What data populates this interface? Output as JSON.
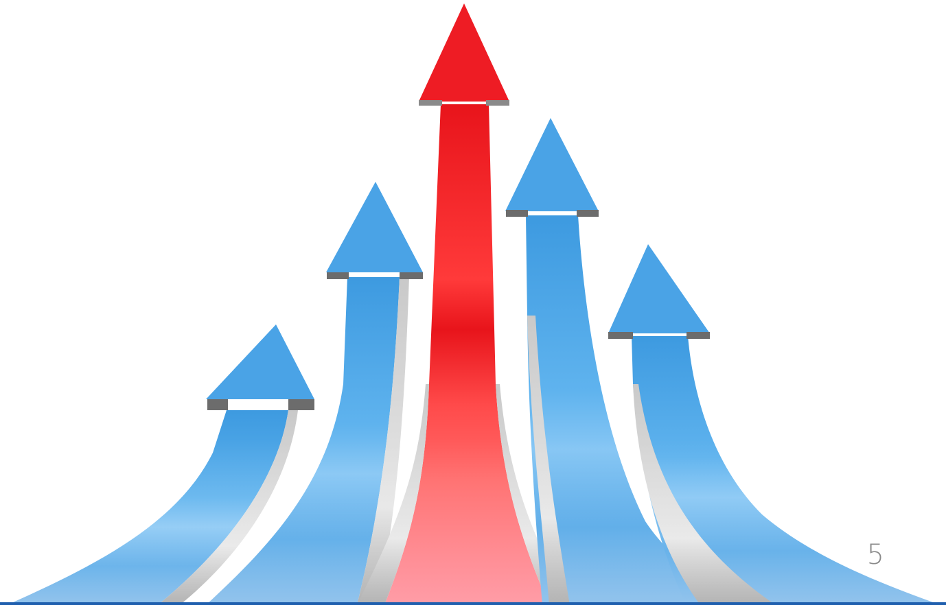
{
  "slide": {
    "page_number": "5"
  },
  "illustration": {
    "subject": "rising-arrows",
    "accent_color": "#e8141b",
    "primary_color": "#4aa3e6",
    "rail_color": "#c8c8c8"
  },
  "colors": {
    "background": "#ffffff",
    "bottom_rule": "#1f5fae",
    "page_number": "#8a8a8a"
  }
}
